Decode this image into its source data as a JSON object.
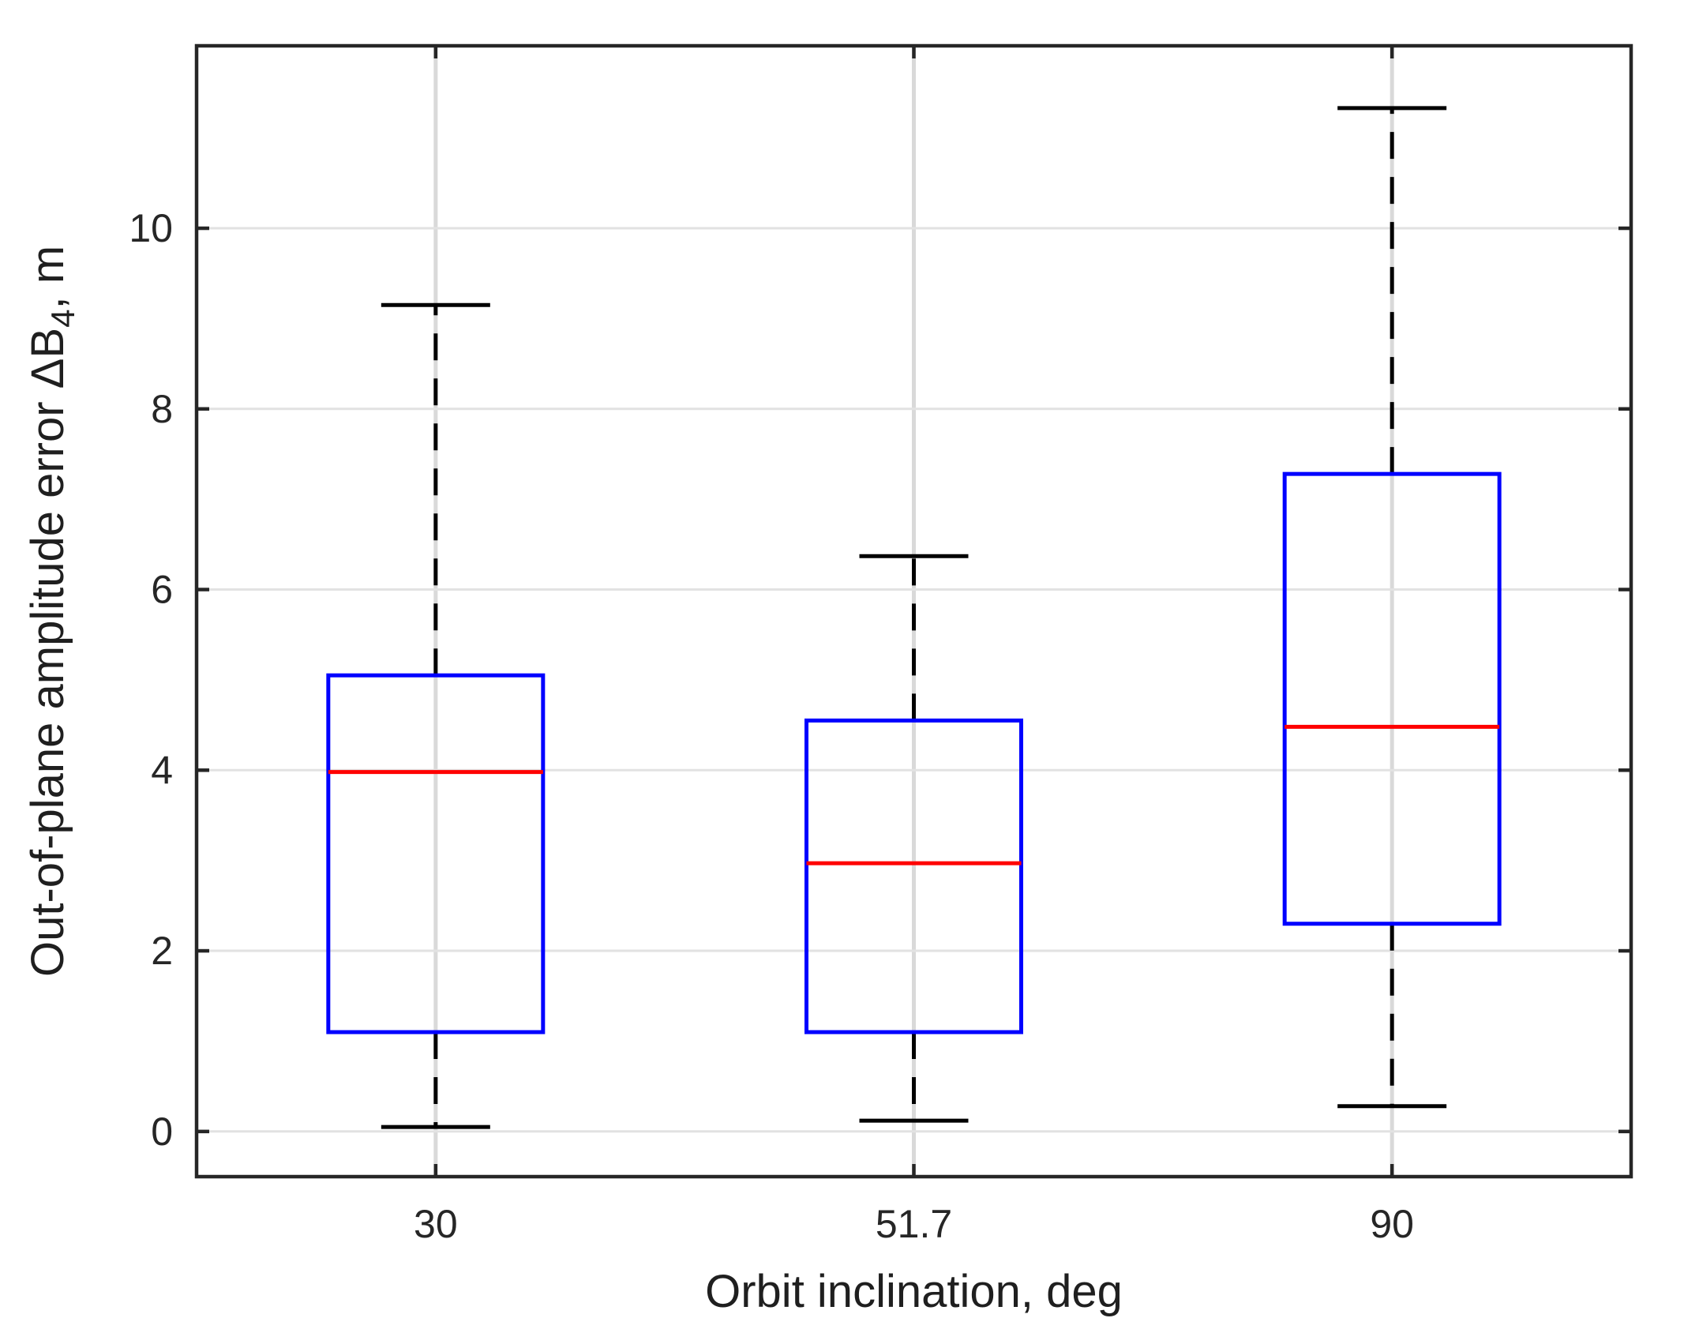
{
  "chart_data": {
    "type": "boxplot",
    "title": "",
    "xlabel": "Orbit inclination, deg",
    "ylabel": "Out-of-plane amplitude error ΔB₄, m",
    "ylabel_parts": {
      "prefix": "Out-of-plane amplitude error ΔB",
      "subscript": "4",
      "suffix": ", m"
    },
    "categories": [
      "30",
      "51.7",
      "90"
    ],
    "boxes": [
      {
        "category": "30",
        "whisker_low": 0.05,
        "q1": 1.1,
        "median": 3.98,
        "q3": 5.05,
        "whisker_high": 9.15
      },
      {
        "category": "51.7",
        "whisker_low": 0.12,
        "q1": 1.1,
        "median": 2.97,
        "q3": 4.55,
        "whisker_high": 6.37
      },
      {
        "category": "90",
        "whisker_low": 0.28,
        "q1": 2.3,
        "median": 4.48,
        "q3": 7.28,
        "whisker_high": 11.33
      }
    ],
    "yticks": [
      0,
      2,
      4,
      6,
      8,
      10
    ],
    "ytick_labels": [
      "0",
      "2",
      "4",
      "6",
      "8",
      "10"
    ],
    "ylim": [
      -0.5,
      12.02
    ],
    "grid": true,
    "legend": null,
    "colors": {
      "box": "#0000ff",
      "median": "#ff0000",
      "whisker": "#000000",
      "cap": "#000000",
      "grid_horizontal": "#e2e2e2",
      "grid_vertical": "#d9d9d9",
      "axis": "#262626",
      "tick_label": "#262626",
      "background": "#ffffff"
    }
  }
}
